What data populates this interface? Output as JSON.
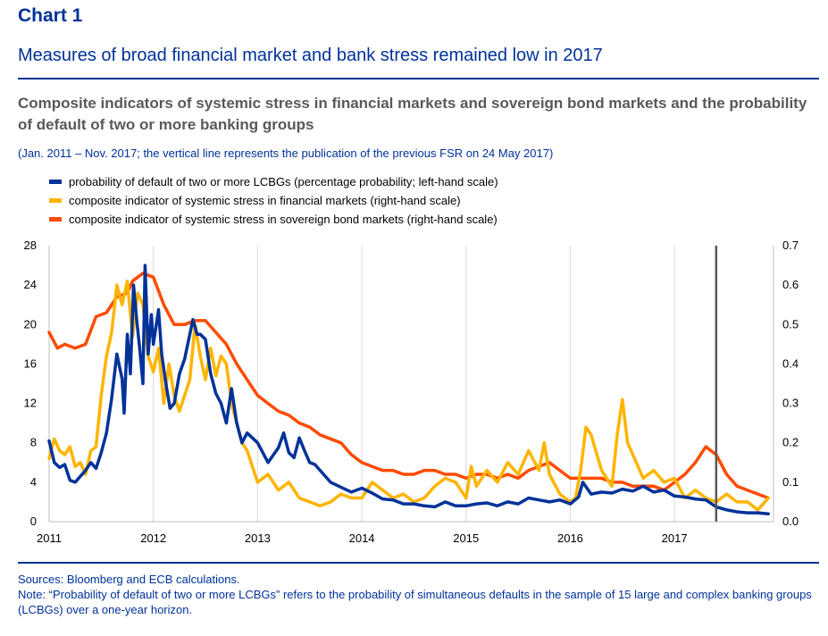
{
  "header": {
    "chart_number": "Chart 1",
    "headline": "Measures of broad financial market and bank stress remained low in 2017"
  },
  "chart_data": {
    "type": "line",
    "title": "Composite indicators of systemic stress in financial markets and sovereign bond markets and the probability of default of two or more banking groups",
    "subtitle": "(Jan. 2011 – Nov. 2017; the vertical line represents the publication of the previous FSR on 24 May 2017)",
    "x_range": [
      2011.0,
      2017.95
    ],
    "x_ticks": [
      "2011",
      "2012",
      "2013",
      "2014",
      "2015",
      "2016",
      "2017"
    ],
    "y_left": {
      "range": [
        0,
        28
      ],
      "ticks": [
        "0",
        "4",
        "8",
        "12",
        "16",
        "20",
        "24",
        "28"
      ]
    },
    "y_right": {
      "range": [
        0,
        0.7
      ],
      "ticks": [
        "0.0",
        "0.1",
        "0.2",
        "0.3",
        "0.4",
        "0.5",
        "0.6",
        "0.7"
      ]
    },
    "vertical_line_x": 2017.4,
    "grid": "vertical",
    "legend_position": "top-left",
    "series": [
      {
        "name": "probability of default of two or more LCBGs (percentage probability; left-hand scale)",
        "axis": "left",
        "color": "#003299",
        "x": [
          2011.0,
          2011.05,
          2011.1,
          2011.15,
          2011.2,
          2011.25,
          2011.3,
          2011.35,
          2011.4,
          2011.45,
          2011.5,
          2011.55,
          2011.6,
          2011.65,
          2011.7,
          2011.72,
          2011.75,
          2011.78,
          2011.81,
          2011.84,
          2011.87,
          2011.9,
          2011.92,
          2011.95,
          2011.98,
          2012.0,
          2012.05,
          2012.08,
          2012.12,
          2012.16,
          2012.2,
          2012.25,
          2012.3,
          2012.35,
          2012.38,
          2012.42,
          2012.45,
          2012.5,
          2012.55,
          2012.6,
          2012.65,
          2012.7,
          2012.75,
          2012.8,
          2012.85,
          2012.9,
          2012.95,
          2013.0,
          2013.1,
          2013.2,
          2013.25,
          2013.3,
          2013.35,
          2013.4,
          2013.45,
          2013.5,
          2013.55,
          2013.6,
          2013.7,
          2013.8,
          2013.9,
          2014.0,
          2014.1,
          2014.2,
          2014.3,
          2014.4,
          2014.5,
          2014.6,
          2014.7,
          2014.8,
          2014.9,
          2015.0,
          2015.1,
          2015.2,
          2015.3,
          2015.4,
          2015.5,
          2015.6,
          2015.7,
          2015.8,
          2015.9,
          2016.0,
          2016.08,
          2016.12,
          2016.2,
          2016.3,
          2016.4,
          2016.5,
          2016.6,
          2016.7,
          2016.8,
          2016.9,
          2017.0,
          2017.1,
          2017.2,
          2017.3,
          2017.4,
          2017.5,
          2017.6,
          2017.7,
          2017.8,
          2017.9
        ],
        "values": [
          8.2,
          6.0,
          5.5,
          5.8,
          4.2,
          4.0,
          4.6,
          5.2,
          6.0,
          5.4,
          7.0,
          9.0,
          12.5,
          17.0,
          14.5,
          11.0,
          19.0,
          15.0,
          24.0,
          20.5,
          17.5,
          14.0,
          26.0,
          17.0,
          21.0,
          18.0,
          21.5,
          17.0,
          14.0,
          11.5,
          12.0,
          15.0,
          16.5,
          19.0,
          20.5,
          19.0,
          19.0,
          18.5,
          15.0,
          13.0,
          12.0,
          10.0,
          13.5,
          10.0,
          8.0,
          9.0,
          8.5,
          8.0,
          6.0,
          7.5,
          9.0,
          7.0,
          6.5,
          8.5,
          7.2,
          6.0,
          5.8,
          5.2,
          4.0,
          3.5,
          3.0,
          3.4,
          2.9,
          2.3,
          2.2,
          1.8,
          1.8,
          1.6,
          1.5,
          2.0,
          1.6,
          1.6,
          1.8,
          1.9,
          1.6,
          2.0,
          1.8,
          2.4,
          2.2,
          2.0,
          2.2,
          1.8,
          2.5,
          4.0,
          2.8,
          3.0,
          2.9,
          3.3,
          3.1,
          3.6,
          3.0,
          3.2,
          2.6,
          2.5,
          2.3,
          2.2,
          1.5,
          1.2,
          1.0,
          0.9,
          0.9,
          0.8
        ]
      },
      {
        "name": "composite indicator of systemic stress in financial markets (right-hand scale)",
        "axis": "right",
        "color": "#FFB400",
        "x": [
          2011.0,
          2011.05,
          2011.1,
          2011.15,
          2011.2,
          2011.25,
          2011.3,
          2011.35,
          2011.4,
          2011.45,
          2011.5,
          2011.55,
          2011.6,
          2011.65,
          2011.7,
          2011.75,
          2011.8,
          2011.85,
          2011.9,
          2011.95,
          2012.0,
          2012.05,
          2012.1,
          2012.15,
          2012.2,
          2012.25,
          2012.3,
          2012.35,
          2012.4,
          2012.45,
          2012.5,
          2012.55,
          2012.6,
          2012.65,
          2012.7,
          2012.75,
          2012.8,
          2012.85,
          2012.9,
          2012.95,
          2013.0,
          2013.1,
          2013.2,
          2013.3,
          2013.4,
          2013.5,
          2013.6,
          2013.7,
          2013.8,
          2013.9,
          2014.0,
          2014.1,
          2014.2,
          2014.3,
          2014.4,
          2014.5,
          2014.6,
          2014.7,
          2014.8,
          2014.9,
          2015.0,
          2015.05,
          2015.1,
          2015.2,
          2015.3,
          2015.4,
          2015.5,
          2015.6,
          2015.7,
          2015.75,
          2015.8,
          2015.9,
          2016.0,
          2016.05,
          2016.1,
          2016.15,
          2016.2,
          2016.3,
          2016.4,
          2016.45,
          2016.5,
          2016.55,
          2016.6,
          2016.7,
          2016.8,
          2016.9,
          2017.0,
          2017.1,
          2017.2,
          2017.3,
          2017.4,
          2017.5,
          2017.6,
          2017.7,
          2017.8,
          2017.9
        ],
        "values": [
          0.16,
          0.21,
          0.18,
          0.17,
          0.19,
          0.14,
          0.15,
          0.12,
          0.18,
          0.19,
          0.32,
          0.42,
          0.48,
          0.6,
          0.55,
          0.61,
          0.47,
          0.58,
          0.55,
          0.42,
          0.38,
          0.44,
          0.3,
          0.4,
          0.32,
          0.28,
          0.32,
          0.36,
          0.5,
          0.42,
          0.36,
          0.44,
          0.37,
          0.42,
          0.4,
          0.3,
          0.25,
          0.2,
          0.18,
          0.14,
          0.1,
          0.12,
          0.08,
          0.1,
          0.06,
          0.05,
          0.04,
          0.05,
          0.07,
          0.06,
          0.06,
          0.1,
          0.08,
          0.06,
          0.07,
          0.05,
          0.06,
          0.09,
          0.11,
          0.1,
          0.06,
          0.14,
          0.09,
          0.13,
          0.1,
          0.15,
          0.12,
          0.18,
          0.13,
          0.2,
          0.12,
          0.07,
          0.05,
          0.06,
          0.13,
          0.24,
          0.22,
          0.13,
          0.09,
          0.22,
          0.31,
          0.2,
          0.17,
          0.11,
          0.13,
          0.1,
          0.11,
          0.06,
          0.08,
          0.06,
          0.05,
          0.07,
          0.05,
          0.05,
          0.03,
          0.06
        ]
      },
      {
        "name": "composite indicator of systemic stress in sovereign bond markets (right-hand scale)",
        "axis": "right",
        "color": "#FF4B00",
        "x": [
          2011.0,
          2011.08,
          2011.15,
          2011.25,
          2011.35,
          2011.45,
          2011.55,
          2011.65,
          2011.75,
          2011.8,
          2011.85,
          2011.9,
          2012.0,
          2012.1,
          2012.2,
          2012.3,
          2012.4,
          2012.5,
          2012.6,
          2012.7,
          2012.8,
          2012.9,
          2013.0,
          2013.1,
          2013.2,
          2013.3,
          2013.4,
          2013.5,
          2013.6,
          2013.7,
          2013.8,
          2013.9,
          2014.0,
          2014.1,
          2014.2,
          2014.3,
          2014.4,
          2014.5,
          2014.6,
          2014.7,
          2014.8,
          2014.9,
          2015.0,
          2015.1,
          2015.2,
          2015.3,
          2015.4,
          2015.5,
          2015.6,
          2015.7,
          2015.8,
          2015.9,
          2016.0,
          2016.1,
          2016.2,
          2016.3,
          2016.4,
          2016.5,
          2016.6,
          2016.7,
          2016.8,
          2016.9,
          2017.0,
          2017.1,
          2017.2,
          2017.3,
          2017.4,
          2017.5,
          2017.6,
          2017.7,
          2017.8,
          2017.9
        ],
        "values": [
          0.48,
          0.44,
          0.45,
          0.44,
          0.45,
          0.52,
          0.53,
          0.57,
          0.58,
          0.61,
          0.62,
          0.63,
          0.62,
          0.55,
          0.5,
          0.5,
          0.51,
          0.51,
          0.48,
          0.45,
          0.4,
          0.36,
          0.32,
          0.3,
          0.28,
          0.27,
          0.25,
          0.24,
          0.22,
          0.21,
          0.2,
          0.17,
          0.15,
          0.14,
          0.13,
          0.13,
          0.12,
          0.12,
          0.13,
          0.13,
          0.12,
          0.12,
          0.11,
          0.12,
          0.12,
          0.11,
          0.12,
          0.11,
          0.13,
          0.14,
          0.15,
          0.13,
          0.11,
          0.11,
          0.11,
          0.11,
          0.1,
          0.1,
          0.09,
          0.09,
          0.09,
          0.08,
          0.1,
          0.12,
          0.15,
          0.19,
          0.17,
          0.12,
          0.09,
          0.08,
          0.07,
          0.06
        ]
      }
    ]
  },
  "footer": {
    "sources": "Sources: Bloomberg and ECB calculations.",
    "note": "Note: “Probability of default of two or more LCBGs” refers to the probability of simultaneous defaults in the sample of 15 large and complex banking groups (LCBGs) over a one-year horizon."
  }
}
